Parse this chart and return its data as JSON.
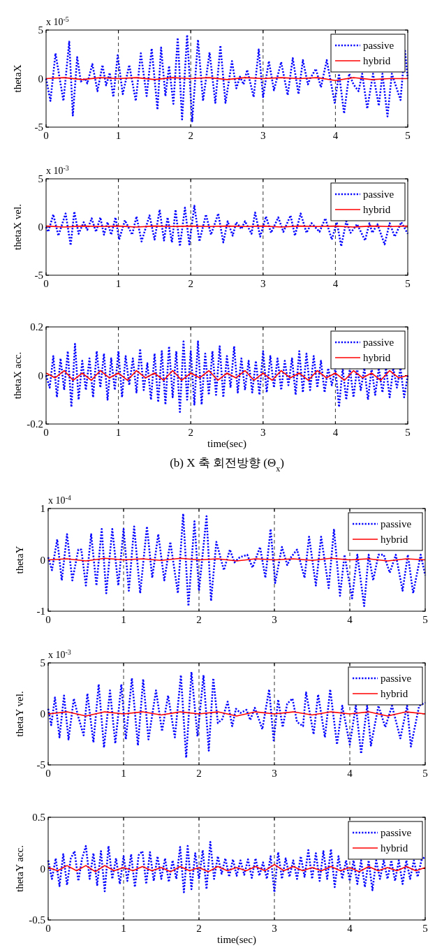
{
  "chart_data": [
    {
      "type": "line",
      "ylabel": "thetaX",
      "annotations": [
        "x 10$^{-5}$"
      ],
      "xlim": [
        0,
        5
      ],
      "ylim": [
        -5,
        5
      ],
      "xticks": [
        0,
        1,
        2,
        3,
        4,
        5
      ],
      "yticks": [
        -5,
        0,
        5
      ],
      "grid": "x",
      "legend": "top right",
      "series": [
        {
          "name": "passive",
          "color": "#0000ff",
          "line_style": "dotted",
          "x": [
            0,
            0.06,
            0.13,
            0.24,
            0.32,
            0.37,
            0.43,
            0.48,
            0.54,
            0.57,
            0.64,
            0.71,
            0.78,
            0.83,
            0.88,
            0.93,
            0.99,
            1.06,
            1.15,
            1.24,
            1.31,
            1.39,
            1.46,
            1.54,
            1.59,
            1.65,
            1.7,
            1.76,
            1.82,
            1.88,
            1.95,
            2.02,
            2.1,
            2.17,
            2.26,
            2.34,
            2.41,
            2.48,
            2.57,
            2.63,
            2.68,
            2.73,
            2.78,
            2.87,
            2.94,
            3.0,
            3.08,
            3.15,
            3.25,
            3.34,
            3.41,
            3.49,
            3.55,
            3.62,
            3.65,
            3.73,
            3.8,
            3.88,
            3.99,
            4.05,
            4.12,
            4.19,
            4.25,
            4.32,
            4.37,
            4.44,
            4.52,
            4.6,
            4.65,
            4.72,
            4.78,
            4.9,
            4.96,
            5
          ],
          "values": [
            0,
            -2.3,
            2.6,
            -2.3,
            3.8,
            -3.8,
            2.2,
            -0.3,
            0,
            -0.5,
            1.5,
            -1.3,
            1.4,
            -0.7,
            0.6,
            -1.9,
            2.4,
            -1.6,
            1.4,
            -2.3,
            2.6,
            -1.8,
            3.1,
            -3.2,
            3.2,
            -1.8,
            1.3,
            -2.6,
            4.2,
            -4.2,
            4.5,
            -4.4,
            4.0,
            -2.3,
            2.7,
            -2.5,
            3.4,
            -2.5,
            1.8,
            -1.0,
            0.2,
            -0.6,
            0.9,
            -1.9,
            3.0,
            -1.9,
            1.8,
            -1.2,
            1.7,
            -1.7,
            2.1,
            -1.6,
            1.9,
            -0.6,
            0,
            1.0,
            -0.9,
            1.9,
            -2.5,
            0.5,
            -3.6,
            0.5,
            -0.6,
            -1.3,
            0.5,
            -3.1,
            0.5,
            -2.8,
            0.5,
            -3.9,
            0.5,
            -2.2,
            3.0,
            0
          ]
        },
        {
          "name": "hybrid",
          "color": "#ff0000",
          "line_style": "solid",
          "x": [
            0,
            0.25,
            0.5,
            0.75,
            1,
            1.25,
            1.5,
            1.75,
            2,
            2.25,
            2.5,
            2.75,
            3,
            3.25,
            3.5,
            3.75,
            4,
            4.25,
            4.5,
            4.75,
            5
          ],
          "values": [
            0,
            0.1,
            -0.1,
            0.1,
            0,
            0.1,
            -0.1,
            0.1,
            0,
            0.1,
            -0.1,
            0.1,
            0,
            0.1,
            0,
            0.1,
            -0.2,
            0.1,
            -0.1,
            0,
            0
          ]
        }
      ]
    },
    {
      "type": "line",
      "ylabel": "thetaX vel.",
      "annotations": [
        "x 10$^{-3}$"
      ],
      "xlim": [
        0,
        5
      ],
      "ylim": [
        -5,
        5
      ],
      "xticks": [
        0,
        1,
        2,
        3,
        4,
        5
      ],
      "yticks": [
        -5,
        0,
        5
      ],
      "grid": "x",
      "legend": "top right",
      "series": [
        {
          "name": "passive",
          "color": "#0000ff",
          "line_style": "dotted",
          "x": [
            0,
            0.03,
            0.1,
            0.17,
            0.27,
            0.34,
            0.39,
            0.45,
            0.52,
            0.57,
            0.63,
            0.69,
            0.75,
            0.8,
            0.85,
            0.9,
            0.96,
            1.01,
            1.09,
            1.19,
            1.25,
            1.32,
            1.43,
            1.5,
            1.57,
            1.63,
            1.68,
            1.74,
            1.79,
            1.85,
            1.92,
            1.98,
            2.05,
            2.12,
            2.21,
            2.28,
            2.38,
            2.45,
            2.51,
            2.58,
            2.63,
            2.7,
            2.75,
            2.84,
            2.89,
            2.96,
            3.04,
            3.11,
            3.21,
            3.28,
            3.38,
            3.44,
            3.52,
            3.6,
            3.67,
            3.78,
            3.86,
            3.95,
            4.02,
            4.08,
            4.15,
            4.21,
            4.3,
            4.41,
            4.47,
            4.51,
            4.58,
            4.68,
            4.75,
            4.82,
            4.91,
            5
          ],
          "values": [
            0,
            -0.5,
            1.3,
            -0.9,
            1.4,
            -1.9,
            1.6,
            -0.7,
            0.5,
            -0.3,
            0.9,
            -0.5,
            1.0,
            -0.8,
            0.5,
            -0.8,
            1.0,
            -1.3,
            0.7,
            -0.8,
            1.1,
            -1.5,
            1.2,
            -1.3,
            1.8,
            -1.4,
            1.0,
            -1.6,
            1.8,
            -2.0,
            2.0,
            -1.8,
            2.2,
            -1.5,
            1.3,
            -0.8,
            1.4,
            -1.6,
            0.6,
            -0.9,
            0.5,
            -0.2,
            0.6,
            -0.7,
            1.5,
            -1.0,
            1.1,
            -0.6,
            1.0,
            -0.5,
            1.2,
            -0.9,
            1.4,
            -0.6,
            0.4,
            -0.5,
            0.9,
            -1.3,
            0.5,
            -2.0,
            0.6,
            -0.6,
            0.3,
            -1.4,
            0.4,
            -0.6,
            0.3,
            -1.8,
            0.4,
            -1.0,
            0.5,
            -0.7
          ]
        },
        {
          "name": "hybrid",
          "color": "#ff0000",
          "line_style": "solid",
          "x": [
            0,
            0.25,
            0.5,
            0.75,
            1,
            1.25,
            1.5,
            1.75,
            2,
            2.25,
            2.5,
            2.75,
            3,
            3.25,
            3.5,
            3.75,
            4,
            4.25,
            4.5,
            4.75,
            5
          ],
          "values": [
            0.1,
            0,
            0.1,
            0.05,
            0.1,
            0,
            0.1,
            0.05,
            0.1,
            0.05,
            0.1,
            0.05,
            0.1,
            0,
            0.1,
            0.05,
            0.1,
            0,
            0.1,
            0.05,
            0.1
          ]
        }
      ]
    },
    {
      "type": "line",
      "ylabel": "thetaX acc.",
      "xlabel": "time(sec)",
      "annotations": [
        "(b) X 축 회전방향 (Θ$_{x}$)"
      ],
      "xlim": [
        0,
        5
      ],
      "ylim": [
        -0.2,
        0.2
      ],
      "xticks": [
        0,
        1,
        2,
        3,
        4,
        5
      ],
      "yticks": [
        -0.2,
        0,
        0.2
      ],
      "grid": "x",
      "legend": "top right",
      "series": [
        {
          "name": "passive",
          "color": "#0000ff",
          "line_style": "dotted",
          "x": [
            0,
            0.05,
            0.1,
            0.15,
            0.2,
            0.25,
            0.3,
            0.35,
            0.4,
            0.45,
            0.5,
            0.55,
            0.6,
            0.65,
            0.7,
            0.75,
            0.8,
            0.85,
            0.9,
            0.95,
            1,
            1.05,
            1.1,
            1.15,
            1.2,
            1.25,
            1.3,
            1.35,
            1.4,
            1.45,
            1.5,
            1.55,
            1.6,
            1.65,
            1.7,
            1.75,
            1.8,
            1.85,
            1.9,
            1.95,
            2,
            2.05,
            2.1,
            2.15,
            2.2,
            2.25,
            2.3,
            2.35,
            2.4,
            2.45,
            2.5,
            2.55,
            2.6,
            2.65,
            2.7,
            2.75,
            2.8,
            2.85,
            2.9,
            2.95,
            3,
            3.05,
            3.1,
            3.15,
            3.2,
            3.25,
            3.3,
            3.35,
            3.4,
            3.45,
            3.5,
            3.55,
            3.6,
            3.65,
            3.7,
            3.75,
            3.8,
            3.85,
            3.9,
            3.95,
            4,
            4.05,
            4.1,
            4.15,
            4.2,
            4.25,
            4.3,
            4.35,
            4.4,
            4.45,
            4.5,
            4.55,
            4.6,
            4.65,
            4.7,
            4.75,
            4.8,
            4.85,
            4.9,
            4.95,
            5
          ],
          "values": [
            0,
            -0.05,
            0.08,
            -0.09,
            0.07,
            -0.06,
            0.1,
            -0.13,
            0.13,
            -0.1,
            0.06,
            -0.06,
            0.07,
            -0.09,
            0.1,
            -0.05,
            0.09,
            -0.1,
            0.07,
            -0.06,
            0.1,
            -0.09,
            0.08,
            -0.04,
            0.07,
            -0.07,
            0.11,
            -0.06,
            0.05,
            -0.1,
            0.09,
            -0.11,
            0.1,
            -0.12,
            0.12,
            -0.09,
            0.1,
            -0.15,
            0.14,
            -0.1,
            0.1,
            -0.12,
            0.14,
            -0.12,
            0.09,
            -0.08,
            0.1,
            -0.08,
            0.12,
            -0.09,
            0.08,
            -0.05,
            0.12,
            -0.07,
            0.07,
            -0.06,
            0.06,
            -0.07,
            0.06,
            -0.08,
            0.1,
            -0.07,
            0.08,
            -0.05,
            0.07,
            -0.06,
            0.06,
            -0.04,
            0.07,
            -0.08,
            0.1,
            -0.07,
            0.09,
            -0.06,
            0.08,
            -0.05,
            0.06,
            -0.07,
            0.03,
            -0.04,
            0.03,
            -0.13,
            0.03,
            -0.1,
            0.03,
            -0.09,
            0.03,
            -0.06,
            0.03,
            -0.1,
            0.03,
            -0.08,
            0.03,
            -0.07,
            0.03,
            -0.09,
            0.03,
            -0.05,
            0.03,
            -0.09,
            0
          ]
        },
        {
          "name": "hybrid",
          "color": "#ff0000",
          "line_style": "solid",
          "x": [
            0,
            0.125,
            0.25,
            0.375,
            0.5,
            0.625,
            0.75,
            0.875,
            1,
            1.125,
            1.25,
            1.375,
            1.5,
            1.625,
            1.75,
            1.875,
            2,
            2.125,
            2.25,
            2.375,
            2.5,
            2.625,
            2.75,
            2.875,
            3,
            3.125,
            3.25,
            3.375,
            3.5,
            3.625,
            3.75,
            3.875,
            4,
            4.125,
            4.25,
            4.375,
            4.5,
            4.625,
            4.75,
            4.875,
            5
          ],
          "values": [
            0.01,
            -0.01,
            0.02,
            -0.02,
            0.01,
            -0.02,
            0.02,
            -0.01,
            0.01,
            -0.02,
            0.02,
            -0.01,
            0.01,
            -0.02,
            0.02,
            -0.02,
            0.01,
            -0.01,
            0.02,
            -0.02,
            0.01,
            -0.01,
            0.02,
            -0.02,
            0.01,
            -0.02,
            0.02,
            -0.01,
            0.01,
            -0.02,
            0.02,
            -0.01,
            0.01,
            -0.02,
            0.02,
            -0.01,
            0.01,
            -0.02,
            0.02,
            -0.01,
            0
          ]
        }
      ]
    },
    {
      "type": "line",
      "ylabel": "thetaY",
      "annotations": [
        "x 10$^{-4}$"
      ],
      "xlim": [
        0,
        5
      ],
      "ylim": [
        -1,
        1
      ],
      "xticks": [
        0,
        1,
        2,
        3,
        4,
        5
      ],
      "yticks": [
        -1,
        0,
        1
      ],
      "grid": "x",
      "legend": "top right",
      "series": [
        {
          "name": "passive",
          "color": "#0000ff",
          "line_style": "dotted",
          "x": [
            0,
            0.05,
            0.12,
            0.18,
            0.25,
            0.32,
            0.4,
            0.44,
            0.5,
            0.57,
            0.64,
            0.71,
            0.77,
            0.85,
            0.93,
            1.0,
            1.07,
            1.14,
            1.22,
            1.31,
            1.38,
            1.46,
            1.54,
            1.62,
            1.72,
            1.79,
            1.86,
            1.94,
            2.0,
            2.1,
            2.16,
            2.23,
            2.33,
            2.41,
            2.47,
            2.54,
            2.64,
            2.71,
            2.81,
            2.88,
            2.95,
            3.01,
            3.1,
            3.17,
            3.22,
            3.3,
            3.4,
            3.46,
            3.55,
            3.62,
            3.72,
            3.79,
            3.87,
            3.93,
            4.03,
            4.1,
            4.19,
            4.25,
            4.31,
            4.38,
            4.45,
            4.53,
            4.61,
            4.7,
            4.77,
            4.84,
            4.94,
            5
          ],
          "values": [
            0.05,
            -0.2,
            0.4,
            -0.4,
            0.5,
            -0.4,
            0.2,
            0.2,
            -0.5,
            0.5,
            -0.5,
            0.6,
            -0.65,
            0.6,
            -0.5,
            0.6,
            -0.6,
            0.65,
            -0.65,
            0.65,
            -0.35,
            0.5,
            -0.4,
            0.35,
            -0.65,
            0.9,
            -0.9,
            0.75,
            -0.6,
            0.85,
            -0.8,
            0.35,
            -0.2,
            0.2,
            -0.05,
            0.05,
            0.1,
            -0.15,
            0.25,
            -0.35,
            0.6,
            -0.45,
            0.25,
            -0.1,
            0.05,
            0.2,
            -0.35,
            0.45,
            -0.5,
            0.45,
            -0.55,
            0.6,
            -0.7,
            0.1,
            -0.75,
            0.1,
            -0.9,
            0.1,
            -0.4,
            0.1,
            0.1,
            -0.25,
            0.1,
            -0.6,
            0.1,
            -0.65,
            0.1,
            -0.3
          ]
        },
        {
          "name": "hybrid",
          "color": "#ff0000",
          "line_style": "solid",
          "x": [
            0,
            0.25,
            0.5,
            0.75,
            1,
            1.25,
            1.5,
            1.75,
            2,
            2.25,
            2.5,
            2.75,
            3,
            3.25,
            3.5,
            3.75,
            4,
            4.25,
            4.5,
            4.75,
            5
          ],
          "values": [
            0,
            0.02,
            -0.02,
            0.03,
            0,
            0.02,
            -0.01,
            0.03,
            0,
            0.02,
            -0.02,
            0.02,
            0,
            0.02,
            -0.01,
            0.03,
            0,
            0.02,
            -0.02,
            0.02,
            0
          ]
        }
      ]
    },
    {
      "type": "line",
      "ylabel": "thetaY vel.",
      "annotations": [
        "x 10$^{-3}$"
      ],
      "xlim": [
        0,
        5
      ],
      "ylim": [
        -5,
        5
      ],
      "xticks": [
        0,
        1,
        2,
        3,
        4,
        5
      ],
      "yticks": [
        -5,
        0,
        5
      ],
      "grid": "x",
      "legend": "top right",
      "series": [
        {
          "name": "passive",
          "color": "#0000ff",
          "line_style": "dotted",
          "x": [
            0,
            0.04,
            0.09,
            0.15,
            0.21,
            0.27,
            0.34,
            0.4,
            0.47,
            0.52,
            0.6,
            0.67,
            0.74,
            0.82,
            0.89,
            0.97,
            1.03,
            1.11,
            1.19,
            1.26,
            1.33,
            1.43,
            1.51,
            1.59,
            1.68,
            1.76,
            1.83,
            1.9,
            1.98,
            2.06,
            2.13,
            2.19,
            2.25,
            2.31,
            2.38,
            2.44,
            2.49,
            2.55,
            2.63,
            2.68,
            2.74,
            2.84,
            2.93,
            2.99,
            3.05,
            3.11,
            3.17,
            3.24,
            3.3,
            3.38,
            3.42,
            3.52,
            3.58,
            3.67,
            3.74,
            3.83,
            3.9,
            4.0,
            4.08,
            4.15,
            4.23,
            4.28,
            4.38,
            4.47,
            4.56,
            4.67,
            4.76,
            4.81,
            4.92,
            5
          ],
          "values": [
            0.5,
            -1.1,
            1.6,
            -2.3,
            1.8,
            -2.5,
            1.5,
            -0.3,
            -2.1,
            2.0,
            -2.8,
            2.9,
            -3.3,
            2.3,
            -2.9,
            2.9,
            -2.5,
            3.5,
            -3.1,
            3.4,
            -2.5,
            2.3,
            -1.7,
            1.8,
            -2.3,
            3.8,
            -4.3,
            4.1,
            -2.2,
            3.8,
            -3.6,
            3.5,
            -0.9,
            -0.5,
            1.2,
            -1.2,
            0.5,
            0.1,
            0.4,
            -0.6,
            0.6,
            -1.5,
            2.4,
            -2.6,
            1.4,
            -1.3,
            1.0,
            1.5,
            -0.8,
            -1.2,
            2.1,
            -2.0,
            1.9,
            -2.3,
            2.4,
            -3.0,
            0.8,
            -3.0,
            0.8,
            -3.9,
            0.8,
            -3.1,
            0.8,
            -1.3,
            0.8,
            -2.4,
            0.8,
            -3.2,
            0.8,
            1.1
          ]
        },
        {
          "name": "hybrid",
          "color": "#ff0000",
          "line_style": "solid",
          "x": [
            0,
            0.25,
            0.5,
            0.75,
            1,
            1.25,
            1.5,
            1.75,
            2,
            2.25,
            2.5,
            2.75,
            3,
            3.25,
            3.5,
            3.75,
            4,
            4.25,
            4.5,
            4.75,
            5
          ],
          "values": [
            0,
            0.2,
            -0.2,
            0.2,
            0,
            0.2,
            -0.1,
            0.2,
            0,
            0.2,
            -0.2,
            0.2,
            0,
            0.2,
            -0.1,
            0.2,
            0,
            0.2,
            -0.2,
            0.2,
            0
          ]
        }
      ]
    },
    {
      "type": "line",
      "ylabel": "thetaY acc.",
      "xlabel": "time(sec)",
      "xlim": [
        0,
        5
      ],
      "ylim": [
        -0.5,
        0.5
      ],
      "xticks": [
        0,
        1,
        2,
        3,
        4,
        5
      ],
      "yticks": [
        -0.5,
        0,
        0.5
      ],
      "grid": "x",
      "legend": "top right",
      "series": [
        {
          "name": "passive",
          "color": "#0000ff",
          "line_style": "dotted",
          "x": [
            0,
            0.05,
            0.1,
            0.15,
            0.2,
            0.25,
            0.3,
            0.35,
            0.4,
            0.45,
            0.5,
            0.55,
            0.6,
            0.65,
            0.7,
            0.75,
            0.8,
            0.85,
            0.9,
            0.95,
            1,
            1.05,
            1.1,
            1.15,
            1.2,
            1.25,
            1.3,
            1.35,
            1.4,
            1.45,
            1.5,
            1.55,
            1.6,
            1.65,
            1.7,
            1.75,
            1.8,
            1.85,
            1.9,
            1.95,
            2,
            2.05,
            2.1,
            2.15,
            2.2,
            2.25,
            2.3,
            2.35,
            2.4,
            2.45,
            2.5,
            2.55,
            2.6,
            2.65,
            2.7,
            2.75,
            2.8,
            2.85,
            2.9,
            2.95,
            3,
            3.05,
            3.1,
            3.15,
            3.2,
            3.25,
            3.3,
            3.35,
            3.4,
            3.45,
            3.5,
            3.55,
            3.6,
            3.65,
            3.7,
            3.75,
            3.8,
            3.85,
            3.9,
            3.95,
            4,
            4.05,
            4.1,
            4.15,
            4.2,
            4.25,
            4.3,
            4.35,
            4.4,
            4.45,
            4.5,
            4.55,
            4.6,
            4.65,
            4.7,
            4.75,
            4.8,
            4.85,
            4.9,
            4.95,
            5
          ],
          "values": [
            0.08,
            -0.1,
            0.1,
            -0.17,
            0.14,
            -0.16,
            0.1,
            0.17,
            -0.12,
            0.1,
            0.22,
            -0.1,
            0.15,
            -0.16,
            0.17,
            -0.22,
            0.22,
            -0.1,
            0.1,
            -0.15,
            0.12,
            -0.12,
            0.14,
            -0.18,
            0.13,
            0.17,
            -0.15,
            0.16,
            -0.12,
            0.12,
            -0.1,
            0.1,
            -0.13,
            0.08,
            -0.1,
            0.21,
            -0.23,
            0.22,
            -0.2,
            0.15,
            -0.1,
            0.18,
            -0.2,
            0.26,
            -0.1,
            0.12,
            -0.05,
            0.1,
            -0.08,
            0.09,
            -0.07,
            0.08,
            -0.06,
            0.09,
            -0.09,
            0.1,
            -0.07,
            0.06,
            -0.1,
            0.12,
            -0.23,
            0.16,
            -0.1,
            0.1,
            -0.08,
            0.08,
            -0.1,
            0.12,
            -0.08,
            0.18,
            -0.1,
            0.15,
            -0.12,
            0.17,
            -0.1,
            0.19,
            -0.18,
            0.12,
            -0.1,
            0.08,
            -0.12,
            0.08,
            -0.15,
            0.08,
            -0.18,
            0.08,
            -0.21,
            0.08,
            -0.1,
            0.08,
            -0.1,
            0.08,
            -0.12,
            0.08,
            -0.15,
            0.08,
            -0.1,
            0.08,
            -0.08,
            0.08,
            0.12
          ]
        },
        {
          "name": "hybrid",
          "color": "#ff0000",
          "line_style": "solid",
          "x": [
            0,
            0.125,
            0.25,
            0.375,
            0.5,
            0.625,
            0.75,
            0.875,
            1,
            1.125,
            1.25,
            1.375,
            1.5,
            1.625,
            1.75,
            1.875,
            2,
            2.125,
            2.25,
            2.375,
            2.5,
            2.625,
            2.75,
            2.875,
            3,
            3.125,
            3.25,
            3.375,
            3.5,
            3.625,
            3.75,
            3.875,
            4,
            4.125,
            4.25,
            4.375,
            4.5,
            4.625,
            4.75,
            4.875,
            5
          ],
          "values": [
            0.01,
            -0.02,
            0.03,
            -0.02,
            0.03,
            -0.03,
            0.03,
            -0.02,
            0.01,
            -0.02,
            0.02,
            -0.02,
            0.01,
            -0.03,
            0.02,
            -0.02,
            0.01,
            -0.03,
            0.02,
            -0.02,
            0.01,
            -0.02,
            0.02,
            -0.02,
            0.04,
            -0.02,
            0.02,
            -0.02,
            0.01,
            -0.02,
            0.02,
            -0.02,
            0.01,
            -0.03,
            0.02,
            -0.02,
            0.01,
            -0.02,
            0.02,
            -0.02,
            0.01
          ]
        }
      ]
    }
  ]
}
